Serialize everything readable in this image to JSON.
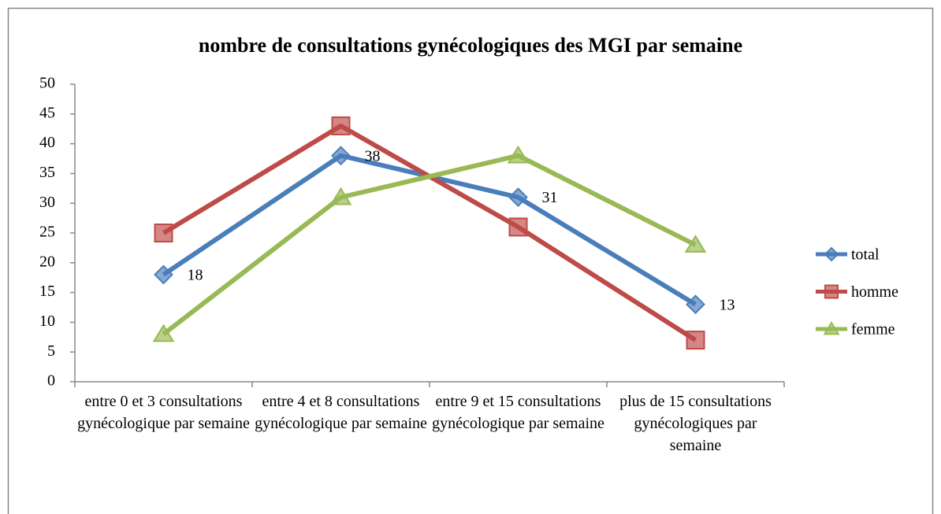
{
  "chart_data": {
    "type": "line",
    "title": "nombre de consultations gynécologiques des MGI par semaine",
    "categories": [
      "entre 0 et 3 consultations gynécologique par semaine",
      "entre 4 et 8 consultations gynécologique par semaine",
      "entre 9 et 15 consultations gynécologique par semaine",
      "plus de 15 consultations gynécologiques par semaine"
    ],
    "series": [
      {
        "name": "total",
        "color": "#4a7ebb",
        "marker": "diamond",
        "data_labels": true,
        "values": [
          18,
          38,
          31,
          13
        ]
      },
      {
        "name": "homme",
        "color": "#be4b48",
        "marker": "square",
        "values": [
          25,
          43,
          26,
          7
        ]
      },
      {
        "name": "femme",
        "color": "#98b954",
        "marker": "triangle",
        "values": [
          8,
          31,
          38,
          23
        ]
      }
    ],
    "ylim": [
      0,
      50
    ],
    "yticks": [
      0,
      5,
      10,
      15,
      20,
      25,
      30,
      35,
      40,
      45,
      50
    ],
    "grid": false,
    "legend": "right"
  }
}
